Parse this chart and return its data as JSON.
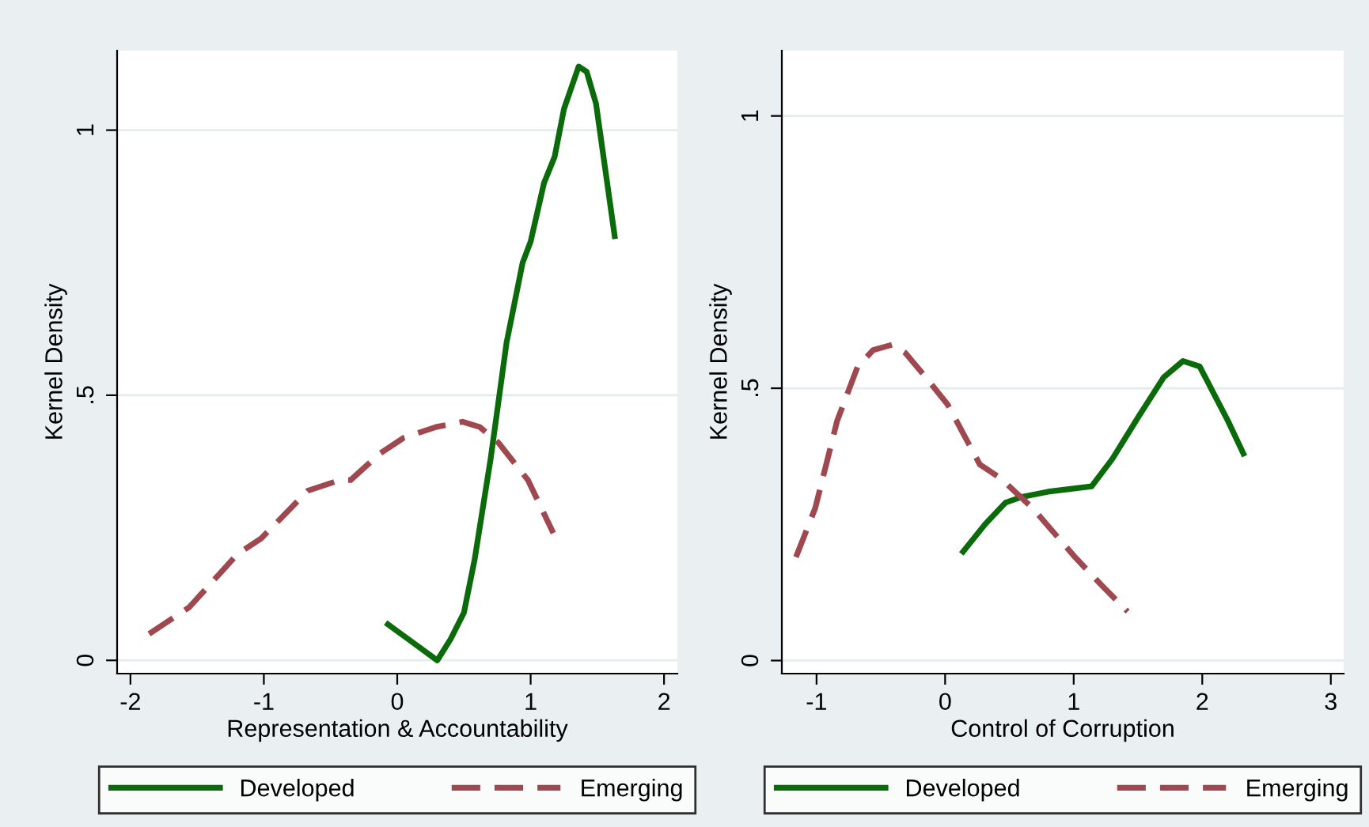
{
  "chart_data": [
    {
      "type": "line",
      "xlabel": "Representation & Accountability",
      "ylabel": "Kernel Density",
      "xlim": [
        -2.1,
        2.1
      ],
      "ylim": [
        -0.025,
        1.15
      ],
      "xticks": [
        -2,
        -1,
        0,
        1,
        2
      ],
      "yticks": [
        0,
        {
          "value": 0.5,
          "label": ".5"
        },
        1
      ],
      "grid": "y",
      "legend": "bottom",
      "marker": "none",
      "series": [
        {
          "name": "Developed",
          "color": "#0b6b0b",
          "line_style": "solid",
          "x": [
            -0.07,
            0.3,
            0.4,
            0.5,
            0.58,
            0.7,
            0.82,
            0.94,
            1.0,
            1.1,
            1.18,
            1.25,
            1.36,
            1.42,
            1.49,
            1.63
          ],
          "values": [
            0.068,
            0.0,
            0.04,
            0.09,
            0.19,
            0.38,
            0.6,
            0.75,
            0.79,
            0.9,
            0.95,
            1.04,
            1.12,
            1.11,
            1.05,
            0.8
          ]
        },
        {
          "name": "Emerging",
          "color": "#a0484f",
          "line_style": "dashed",
          "x": [
            -1.86,
            -1.56,
            -1.2,
            -1.02,
            -0.67,
            -0.43,
            -0.35,
            -0.13,
            0.05,
            0.29,
            0.49,
            0.62,
            0.76,
            0.98,
            1.17
          ],
          "values": [
            0.05,
            0.1,
            0.2,
            0.23,
            0.32,
            0.34,
            0.34,
            0.39,
            0.42,
            0.44,
            0.45,
            0.44,
            0.41,
            0.34,
            0.24
          ]
        }
      ]
    },
    {
      "type": "line",
      "xlabel": "Control of Corruption",
      "ylabel": "Kernel Density",
      "xlim": [
        -1.27,
        3.1
      ],
      "ylim": [
        -0.024,
        1.12
      ],
      "xticks": [
        -1,
        0,
        1,
        2,
        3
      ],
      "yticks": [
        0,
        {
          "value": 0.5,
          "label": ".5"
        },
        1
      ],
      "grid": "y",
      "legend": "bottom",
      "marker": "none",
      "series": [
        {
          "name": "Developed",
          "color": "#0b6b0b",
          "line_style": "solid",
          "x": [
            0.14,
            0.31,
            0.47,
            0.59,
            0.8,
            1.14,
            1.3,
            1.51,
            1.7,
            1.85,
            1.98,
            2.2,
            2.32
          ],
          "values": [
            0.2,
            0.25,
            0.29,
            0.3,
            0.31,
            0.32,
            0.37,
            0.45,
            0.52,
            0.55,
            0.54,
            0.44,
            0.38
          ]
        },
        {
          "name": "Emerging",
          "color": "#a0484f",
          "line_style": "dashed",
          "x": [
            -1.16,
            -1.01,
            -0.84,
            -0.68,
            -0.56,
            -0.41,
            -0.31,
            -0.15,
            0.02,
            0.27,
            0.43,
            0.68,
            1.01,
            1.21,
            1.42
          ],
          "values": [
            0.19,
            0.28,
            0.44,
            0.54,
            0.57,
            0.58,
            0.565,
            0.52,
            0.47,
            0.36,
            0.335,
            0.28,
            0.19,
            0.14,
            0.09
          ]
        }
      ]
    }
  ]
}
